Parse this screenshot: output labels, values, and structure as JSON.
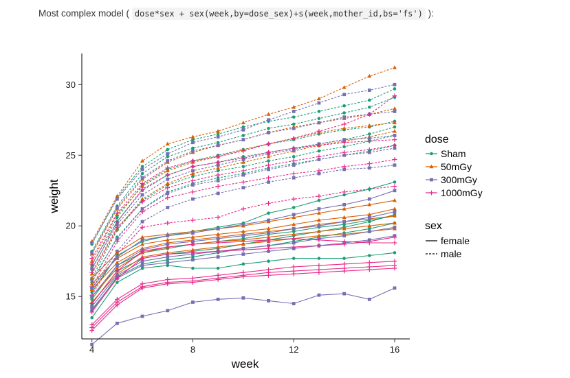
{
  "caption": {
    "prefix": "Most complex model (",
    "code": "dose*sex + sex(week,by=dose_sex)+s(week,mother_id,bs='fs')",
    "suffix": "):"
  },
  "chart_data": {
    "type": "line",
    "xlabel": "week",
    "ylabel": "weight",
    "xlim": [
      3.6,
      16.6
    ],
    "ylim": [
      12.0,
      32.2
    ],
    "x_ticks": [
      4,
      8,
      12,
      16
    ],
    "y_ticks": [
      15,
      20,
      25,
      30
    ],
    "grid": false,
    "legend_placement": "right",
    "x": [
      4,
      5,
      6,
      7,
      8,
      9,
      10,
      11,
      12,
      13,
      14,
      15,
      16
    ],
    "dose_legend": {
      "title": "dose",
      "entries": [
        {
          "label": "Sham",
          "color": "#1b9e77",
          "marker": "circle"
        },
        {
          "label": "50mGy",
          "color": "#d95f02",
          "marker": "triangle"
        },
        {
          "label": "300mGy",
          "color": "#7570b3",
          "marker": "square"
        },
        {
          "label": "1000mGy",
          "color": "#e7298a",
          "marker": "plus"
        }
      ]
    },
    "sex_legend": {
      "title": "sex",
      "entries": [
        {
          "label": "female",
          "linetype": "solid"
        },
        {
          "label": "male",
          "linetype": "dashed"
        }
      ]
    },
    "series": [
      {
        "dose": "Sham",
        "sex": "male",
        "values": [
          18.7,
          22.0,
          24.2,
          25.4,
          26.1,
          26.5,
          27.0,
          27.4,
          27.7,
          28.1,
          28.5,
          28.9,
          29.7
        ]
      },
      {
        "dose": "Sham",
        "sex": "male",
        "values": [
          18.2,
          21.4,
          23.7,
          24.9,
          25.5,
          25.9,
          26.4,
          26.9,
          27.2,
          27.6,
          28.0,
          28.4,
          29.1
        ]
      },
      {
        "dose": "Sham",
        "sex": "male",
        "values": [
          17.2,
          20.6,
          22.9,
          24.0,
          24.6,
          25.0,
          25.4,
          25.8,
          26.1,
          26.5,
          26.8,
          27.0,
          27.4
        ]
      },
      {
        "dose": "Sham",
        "sex": "male",
        "values": [
          16.3,
          19.7,
          21.8,
          22.9,
          23.5,
          23.9,
          24.2,
          24.6,
          24.9,
          25.3,
          25.6,
          26.0,
          26.4
        ]
      },
      {
        "dose": "Sham",
        "sex": "male",
        "values": [
          16.9,
          20.3,
          22.5,
          23.6,
          24.2,
          24.5,
          24.9,
          25.2,
          25.5,
          25.8,
          26.1,
          26.5,
          27.0
        ]
      },
      {
        "dose": "Sham",
        "sex": "male",
        "values": [
          16.0,
          19.2,
          21.2,
          22.4,
          23.0,
          23.4,
          23.7,
          24.1,
          24.4,
          24.7,
          25.0,
          25.3,
          25.7
        ]
      },
      {
        "dose": "50mGy",
        "sex": "male",
        "values": [
          18.9,
          22.1,
          24.6,
          25.8,
          26.3,
          26.7,
          27.3,
          27.9,
          28.4,
          29.0,
          29.8,
          30.6,
          31.2
        ]
      },
      {
        "dose": "50mGy",
        "sex": "male",
        "values": [
          18.0,
          21.2,
          23.3,
          24.5,
          25.2,
          25.7,
          26.1,
          26.6,
          27.0,
          27.3,
          27.6,
          27.9,
          28.3
        ]
      },
      {
        "dose": "50mGy",
        "sex": "male",
        "values": [
          17.5,
          20.8,
          22.8,
          23.9,
          24.5,
          24.9,
          25.4,
          25.8,
          26.2,
          26.6,
          26.9,
          27.1,
          27.3
        ]
      },
      {
        "dose": "50mGy",
        "sex": "male",
        "values": [
          16.6,
          19.8,
          21.9,
          23.0,
          23.7,
          24.1,
          24.5,
          24.9,
          25.3,
          25.7,
          26.0,
          26.3,
          26.7
        ]
      },
      {
        "dose": "300mGy",
        "sex": "male",
        "values": [
          18.8,
          21.9,
          24.0,
          25.1,
          25.9,
          26.3,
          26.8,
          27.5,
          28.1,
          28.7,
          29.3,
          29.6,
          30.0
        ]
      },
      {
        "dose": "300mGy",
        "sex": "male",
        "values": [
          18.1,
          21.3,
          23.4,
          24.6,
          25.3,
          25.7,
          26.1,
          26.6,
          26.9,
          27.3,
          27.7,
          27.9,
          28.1
        ]
      },
      {
        "dose": "300mGy",
        "sex": "male",
        "values": [
          17.0,
          20.1,
          22.2,
          23.3,
          23.9,
          24.3,
          24.7,
          25.1,
          25.4,
          25.8,
          26.1,
          26.2,
          26.4
        ]
      },
      {
        "dose": "300mGy",
        "sex": "male",
        "values": [
          16.2,
          19.1,
          21.2,
          22.3,
          22.9,
          23.2,
          23.6,
          24.0,
          24.3,
          24.7,
          25.0,
          25.2,
          25.5
        ]
      },
      {
        "dose": "300mGy",
        "sex": "male",
        "values": [
          15.6,
          18.2,
          20.3,
          21.3,
          21.9,
          22.3,
          22.7,
          23.1,
          23.4,
          23.7,
          24.0,
          24.1,
          24.3
        ]
      },
      {
        "dose": "1000mGy",
        "sex": "male",
        "values": [
          17.7,
          20.9,
          23.0,
          24.1,
          24.6,
          24.9,
          25.3,
          25.8,
          26.2,
          26.7,
          27.2,
          27.9,
          29.2
        ]
      },
      {
        "dose": "1000mGy",
        "sex": "male",
        "values": [
          17.3,
          20.3,
          22.6,
          23.6,
          24.2,
          24.5,
          24.8,
          25.2,
          25.5,
          25.7,
          25.9,
          26.0,
          26.1
        ]
      },
      {
        "dose": "1000mGy",
        "sex": "male",
        "values": [
          16.7,
          19.9,
          21.7,
          22.7,
          23.2,
          23.6,
          23.9,
          24.3,
          24.6,
          24.9,
          25.2,
          25.4,
          25.7
        ]
      },
      {
        "dose": "1000mGy",
        "sex": "male",
        "values": [
          15.7,
          18.9,
          21.0,
          22.0,
          22.4,
          22.8,
          23.1,
          23.4,
          23.7,
          23.9,
          24.2,
          24.4,
          24.7
        ]
      },
      {
        "dose": "1000mGy",
        "sex": "male",
        "values": [
          15.1,
          18.0,
          19.9,
          20.2,
          20.4,
          20.6,
          21.2,
          21.6,
          21.9,
          22.1,
          22.4,
          22.6,
          22.8
        ]
      },
      {
        "dose": "Sham",
        "sex": "female",
        "values": [
          15.3,
          17.9,
          18.9,
          19.3,
          19.6,
          19.9,
          20.2,
          20.9,
          21.3,
          21.8,
          22.2,
          22.6,
          23.1
        ]
      },
      {
        "dose": "Sham",
        "sex": "female",
        "values": [
          14.5,
          16.8,
          17.7,
          18.0,
          18.2,
          18.4,
          18.7,
          19.0,
          19.3,
          19.6,
          19.9,
          20.3,
          20.8
        ]
      },
      {
        "dose": "Sham",
        "sex": "female",
        "values": [
          14.0,
          16.4,
          17.3,
          17.6,
          17.8,
          18.1,
          18.4,
          18.6,
          18.9,
          19.2,
          19.5,
          19.8,
          20.2
        ]
      },
      {
        "dose": "Sham",
        "sex": "female",
        "values": [
          13.5,
          16.0,
          17.0,
          17.2,
          17.0,
          17.0,
          17.3,
          17.5,
          17.7,
          17.7,
          17.7,
          17.9,
          18.1
        ]
      },
      {
        "dose": "Sham",
        "sex": "female",
        "values": [
          14.8,
          17.2,
          18.1,
          18.4,
          18.7,
          18.9,
          19.1,
          19.4,
          19.6,
          19.9,
          20.1,
          20.4,
          20.7
        ]
      },
      {
        "dose": "50mGy",
        "sex": "female",
        "values": [
          16.3,
          18.1,
          19.2,
          19.4,
          19.6,
          19.8,
          20.0,
          20.3,
          20.6,
          20.9,
          21.2,
          21.5,
          21.8
        ]
      },
      {
        "dose": "50mGy",
        "sex": "female",
        "values": [
          15.9,
          17.7,
          18.7,
          19.0,
          19.2,
          19.4,
          19.6,
          19.8,
          20.1,
          20.4,
          20.6,
          20.8,
          21.2
        ]
      },
      {
        "dose": "50mGy",
        "sex": "female",
        "values": [
          15.5,
          17.4,
          18.4,
          18.8,
          19.0,
          19.2,
          19.4,
          19.6,
          19.8,
          20.1,
          20.3,
          20.5,
          20.7
        ]
      },
      {
        "dose": "50mGy",
        "sex": "female",
        "values": [
          15.0,
          17.0,
          18.1,
          18.5,
          18.7,
          18.9,
          19.0,
          19.2,
          19.4,
          19.6,
          19.8,
          20.0,
          20.2
        ]
      },
      {
        "dose": "50mGy",
        "sex": "female",
        "values": [
          14.6,
          16.6,
          17.8,
          18.1,
          18.3,
          18.5,
          18.7,
          18.9,
          19.1,
          19.3,
          19.4,
          19.6,
          19.8
        ]
      },
      {
        "dose": "300mGy",
        "sex": "female",
        "values": [
          15.6,
          17.8,
          19.0,
          19.3,
          19.5,
          19.8,
          20.1,
          20.4,
          20.8,
          21.2,
          21.5,
          21.9,
          22.5
        ]
      },
      {
        "dose": "300mGy",
        "sex": "female",
        "values": [
          15.0,
          17.2,
          18.3,
          18.7,
          18.9,
          19.1,
          19.3,
          19.5,
          19.8,
          20.0,
          20.3,
          20.6,
          21.0
        ]
      },
      {
        "dose": "300mGy",
        "sex": "female",
        "values": [
          14.3,
          16.5,
          17.5,
          17.8,
          18.0,
          18.2,
          18.4,
          18.6,
          18.8,
          19.1,
          19.3,
          19.6,
          19.9
        ]
      },
      {
        "dose": "300mGy",
        "sex": "female",
        "values": [
          14.1,
          16.3,
          17.2,
          17.4,
          17.6,
          17.8,
          18.0,
          18.2,
          18.4,
          18.6,
          18.8,
          19.0,
          19.3
        ]
      },
      {
        "dose": "300mGy",
        "sex": "female",
        "values": [
          11.6,
          13.1,
          13.6,
          14.0,
          14.6,
          14.8,
          14.9,
          14.7,
          14.5,
          15.1,
          15.2,
          14.8,
          15.6
        ]
      },
      {
        "dose": "1000mGy",
        "sex": "female",
        "values": [
          14.5,
          16.8,
          18.2,
          18.5,
          18.7,
          18.8,
          18.9,
          19.0,
          19.1,
          19.0,
          18.9,
          18.8,
          18.8
        ]
      },
      {
        "dose": "1000mGy",
        "sex": "female",
        "values": [
          13.9,
          16.3,
          17.7,
          18.0,
          18.1,
          18.2,
          18.3,
          18.4,
          18.5,
          18.6,
          18.7,
          18.9,
          19.2
        ]
      },
      {
        "dose": "1000mGy",
        "sex": "female",
        "values": [
          13.0,
          14.8,
          15.9,
          16.2,
          16.3,
          16.5,
          16.7,
          16.9,
          17.1,
          17.2,
          17.3,
          17.4,
          17.5
        ]
      },
      {
        "dose": "1000mGy",
        "sex": "female",
        "values": [
          12.8,
          14.6,
          15.7,
          16.0,
          16.1,
          16.3,
          16.5,
          16.7,
          16.8,
          16.9,
          17.0,
          17.1,
          17.2
        ]
      },
      {
        "dose": "1000mGy",
        "sex": "female",
        "values": [
          12.6,
          14.4,
          15.6,
          15.9,
          16.0,
          16.2,
          16.4,
          16.5,
          16.6,
          16.7,
          16.8,
          16.9,
          17.0
        ]
      }
    ]
  }
}
